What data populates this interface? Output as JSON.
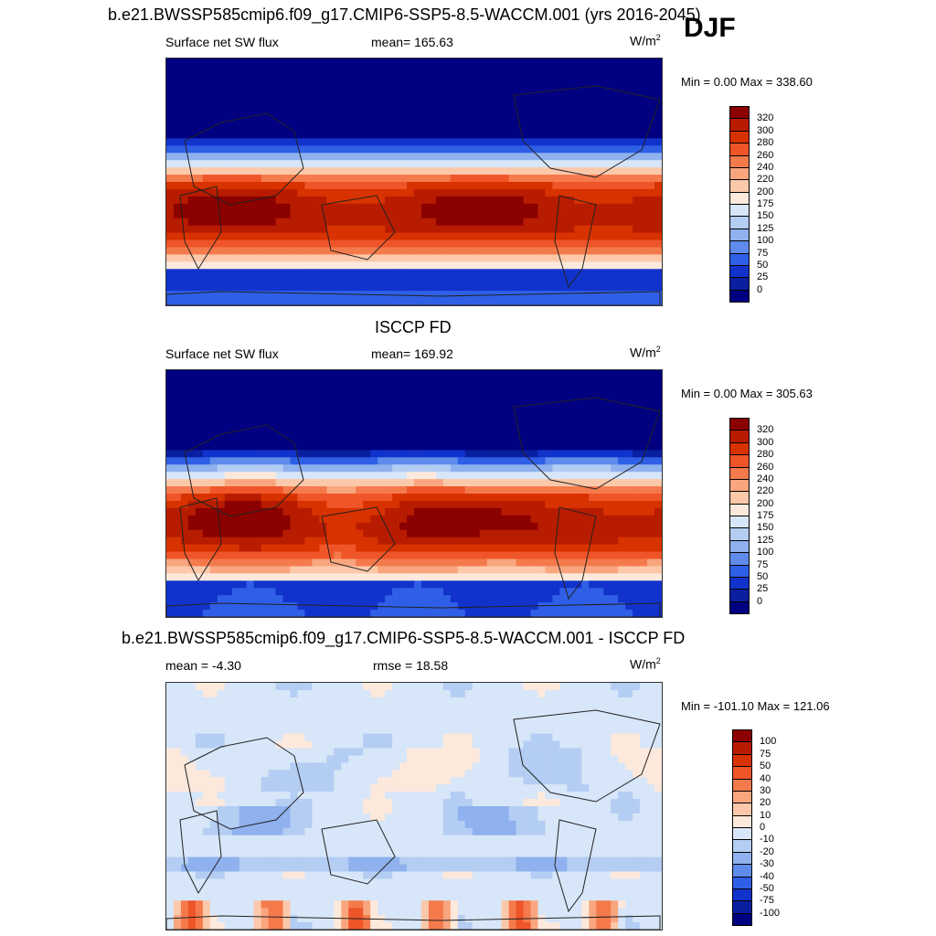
{
  "header": {
    "title": "b.e21.BWSSP585cmip6.f09_g17.CMIP6-SSP5-8.5-WACCM.001 (yrs 2016-2045)",
    "season": "DJF"
  },
  "panels": [
    {
      "title": "",
      "variable": "Surface net SW flux",
      "stat": "mean= 165.63",
      "unit": "W/m",
      "unit_sup": "2",
      "minmax": "Min =   0.00 Max = 338.60"
    },
    {
      "title": "ISCCP FD",
      "variable": "Surface net SW flux",
      "stat": "mean= 169.92",
      "unit": "W/m",
      "unit_sup": "2",
      "minmax": "Min =   0.00 Max = 305.63"
    },
    {
      "title": "b.e21.BWSSP585cmip6.f09_g17.CMIP6-SSP5-8.5-WACCM.001 - ISCCP FD",
      "variable": "mean =  -4.30",
      "stat": "rmse =  18.58",
      "unit": "W/m",
      "unit_sup": "2",
      "minmax": "Min = -101.10 Max = 121.06"
    }
  ],
  "chart_data": [
    {
      "type": "heatmap",
      "title": "b.e21.BWSSP585cmip6.f09_g17.CMIP6-SSP5-8.5-WACCM.001 (yrs 2016-2045)",
      "subtitle": "Surface net SW flux",
      "mean": 165.63,
      "min": 0.0,
      "max": 338.6,
      "colorbar_levels": [
        320,
        300,
        280,
        260,
        240,
        220,
        200,
        175,
        150,
        125,
        100,
        75,
        50,
        25,
        0
      ],
      "colors": [
        "#8b0000",
        "#b81c00",
        "#d83200",
        "#ef5528",
        "#f47a4c",
        "#f9a67f",
        "#fcc8aa",
        "#fde9dc",
        "#d7e6f8",
        "#b4cdf3",
        "#8fb1ee",
        "#5e8bec",
        "#2f5fe6",
        "#1133cc",
        "#0a1fa0",
        "#000080"
      ]
    },
    {
      "type": "heatmap",
      "title": "ISCCP FD",
      "subtitle": "Surface net SW flux",
      "mean": 169.92,
      "min": 0.0,
      "max": 305.63,
      "colorbar_levels": [
        320,
        300,
        280,
        260,
        240,
        220,
        200,
        175,
        150,
        125,
        100,
        75,
        50,
        25,
        0
      ],
      "colors": [
        "#8b0000",
        "#b81c00",
        "#d83200",
        "#ef5528",
        "#f47a4c",
        "#f9a67f",
        "#fcc8aa",
        "#fde9dc",
        "#d7e6f8",
        "#b4cdf3",
        "#8fb1ee",
        "#5e8bec",
        "#2f5fe6",
        "#1133cc",
        "#0a1fa0",
        "#000080"
      ]
    },
    {
      "type": "heatmap",
      "title": "b.e21.BWSSP585cmip6.f09_g17.CMIP6-SSP5-8.5-WACCM.001 - ISCCP FD",
      "mean": -4.3,
      "rmse": 18.58,
      "min": -101.1,
      "max": 121.06,
      "colorbar_levels": [
        100,
        75,
        50,
        40,
        30,
        20,
        10,
        0,
        -10,
        -20,
        -30,
        -40,
        -50,
        -75,
        -100
      ],
      "colors": [
        "#8b0000",
        "#b81c00",
        "#d83200",
        "#ef5528",
        "#f47a4c",
        "#f9a67f",
        "#fcc8aa",
        "#fde9dc",
        "#d7e6f8",
        "#b4cdf3",
        "#8fb1ee",
        "#5e8bec",
        "#2f5fe6",
        "#1133cc",
        "#0a1fa0",
        "#000080"
      ]
    }
  ]
}
